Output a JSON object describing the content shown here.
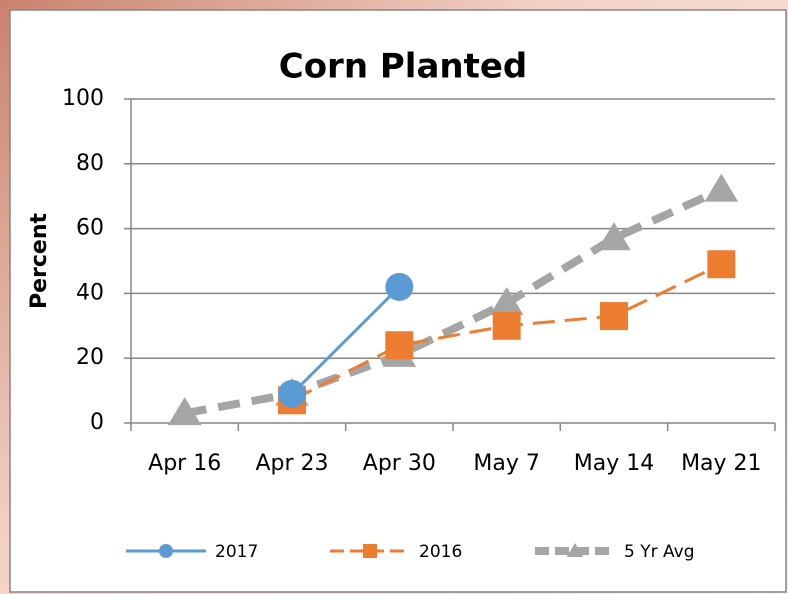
{
  "chart_data": {
    "type": "line",
    "title": "Corn Planted",
    "y_label": "Percent",
    "categories": [
      "Apr 16",
      "Apr 23",
      "Apr 30",
      "May 7",
      "May 14",
      "May 21"
    ],
    "series": [
      {
        "name": "2017",
        "color": "#5b9bd5",
        "marker": "circle",
        "dashed": false,
        "values": [
          null,
          9,
          42,
          null,
          null,
          null
        ]
      },
      {
        "name": "2016",
        "color": "#ed7d31",
        "marker": "square",
        "dashed": true,
        "values": [
          null,
          7,
          24,
          30,
          33,
          49
        ]
      },
      {
        "name": "5 Yr Avg",
        "color": "#a5a5a5",
        "marker": "triangle",
        "dashed": true,
        "values": [
          3,
          9,
          21,
          37,
          57,
          72
        ]
      }
    ],
    "ylim": [
      0,
      100
    ],
    "yticks": [
      0,
      20,
      40,
      60,
      80,
      100
    ],
    "grid": true,
    "legend": "bottom"
  }
}
